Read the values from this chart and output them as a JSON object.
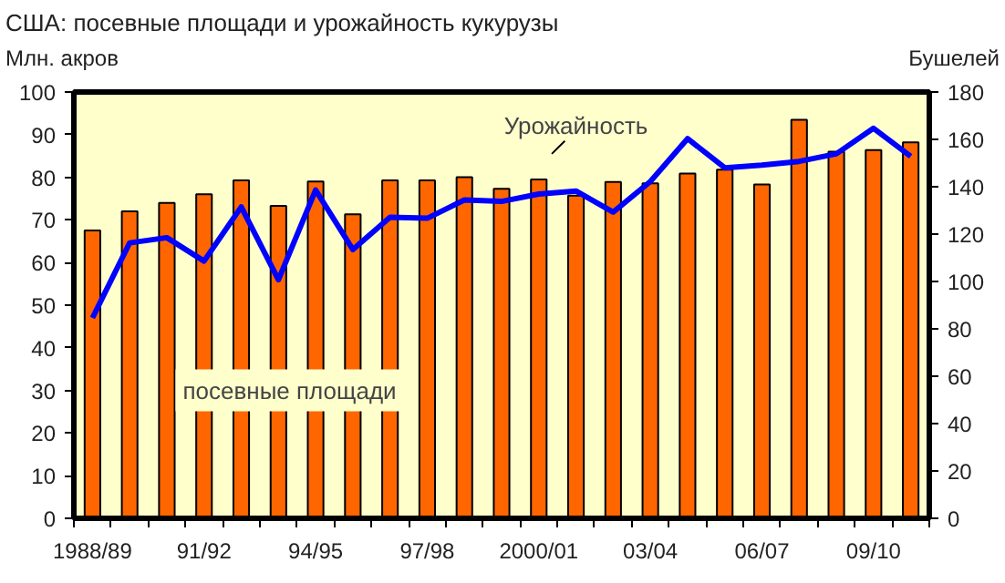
{
  "chart_data": {
    "type": "bar",
    "title": "США: посевные площади и урожайность кукурузы",
    "ylabel": "Млн. акров",
    "y2label": "Бушелей",
    "categories": [
      "1988/89",
      null,
      null,
      "91/92",
      null,
      null,
      "94/95",
      null,
      null,
      "97/98",
      null,
      null,
      "2000/01",
      null,
      null,
      "03/04",
      null,
      null,
      "06/07",
      null,
      null,
      "09/10",
      null
    ],
    "series": [
      {
        "name": "посевные площади",
        "color": "#ff6600",
        "values": [
          67.5,
          72,
          74,
          76,
          79.3,
          73.3,
          79,
          71.3,
          79.3,
          79.3,
          80,
          77.3,
          79.5,
          75.7,
          78.9,
          78.6,
          80.9,
          81.8,
          78.3,
          93.5,
          86,
          86.4,
          88.2
        ]
      },
      {
        "name": "Урожайность",
        "type": "line",
        "axis": "y2",
        "color": "#0000ff",
        "values": [
          84.6,
          116.3,
          118.5,
          108.6,
          131.5,
          100.7,
          138.6,
          113.5,
          127.1,
          126.7,
          134.4,
          133.8,
          136.9,
          138.2,
          129.3,
          142.2,
          160.3,
          148.0,
          149.1,
          150.7,
          153.9,
          164.7,
          152.8
        ]
      }
    ],
    "ylim": [
      0,
      100
    ],
    "yticks": [
      0,
      10,
      20,
      30,
      40,
      50,
      60,
      70,
      80,
      90,
      100
    ],
    "y2lim": [
      0,
      180
    ],
    "y2ticks": [
      0,
      20,
      40,
      60,
      80,
      100,
      120,
      140,
      160,
      180
    ],
    "grid": false
  }
}
